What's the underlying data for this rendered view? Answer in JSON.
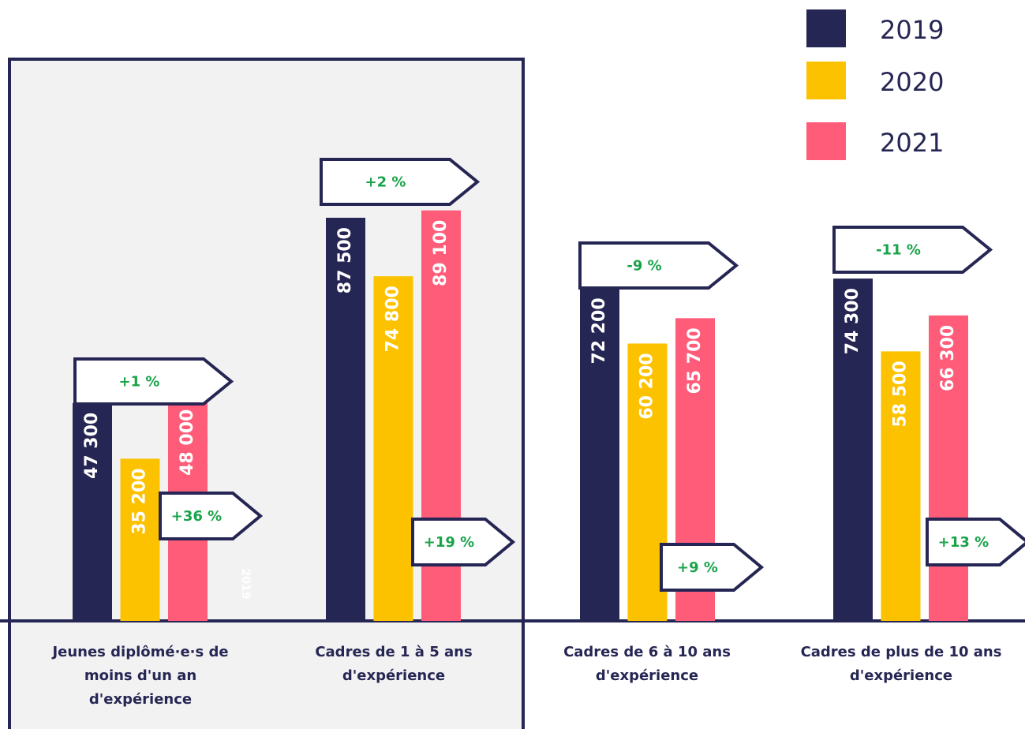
{
  "chart_data": {
    "type": "bar",
    "categories": [
      "Jeunes diplômé·e·s de moins d'un an d'expérience",
      "Cadres de 1 à 5 ans d'expérience",
      "Cadres de 6 à 10 ans d'expérience",
      "Cadres de plus de 10 ans d'expérience"
    ],
    "series": [
      {
        "name": "2019",
        "color": "#262654",
        "values": [
          47300,
          87500,
          72200,
          74300
        ],
        "value_labels": [
          "47 300",
          "87 500",
          "72 200",
          "74 300"
        ]
      },
      {
        "name": "2020",
        "color": "#fcc200",
        "values": [
          35200,
          74800,
          60200,
          58500
        ],
        "value_labels": [
          "35 200",
          "74 800",
          "60 200",
          "58 500"
        ]
      },
      {
        "name": "2021",
        "color": "#ff5c7a",
        "values": [
          48000,
          89100,
          65700,
          66300
        ],
        "value_labels": [
          "48 000",
          "89 100",
          "65 700",
          "66 300"
        ]
      }
    ],
    "change_labels_top": [
      "+1 %",
      "+2 %",
      "-9 %",
      "-11 %"
    ],
    "change_labels_bottom": [
      "+36 %",
      "+19 %",
      "+9 %",
      "+13 %"
    ],
    "ghost_label": "2019",
    "legend": "top-right"
  }
}
